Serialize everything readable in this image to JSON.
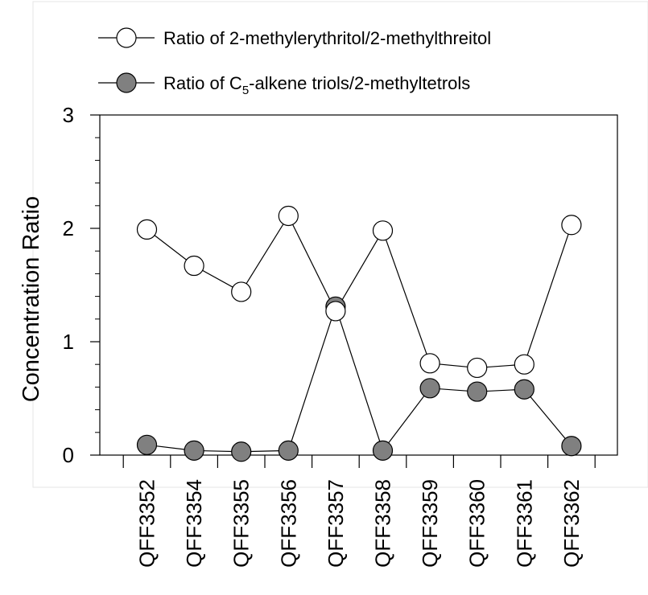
{
  "chart_data": {
    "type": "line",
    "categories": [
      "QFF3352",
      "QFF3354",
      "QFF3355",
      "QFF3356",
      "QFF3357",
      "QFF3358",
      "QFF3359",
      "QFF3360",
      "QFF3361",
      "QFF3362"
    ],
    "ylabel": "Concentration Ratio",
    "xlabel": "",
    "ylim": [
      0,
      3
    ],
    "yticks": [
      "0",
      "1",
      "2",
      "3"
    ],
    "grid": false,
    "legend_position": "top",
    "series": [
      {
        "name": "Ratio of 2-methylerythritol/2-methylthreitol",
        "legend_prefix": "Ratio of 2-methylerythritol/2-methylthreitol",
        "legend_sub": "",
        "legend_suffix": "",
        "marker_fill": "#ffffff",
        "values": [
          1.99,
          1.67,
          1.44,
          2.11,
          1.27,
          1.98,
          0.81,
          0.77,
          0.8,
          2.03
        ]
      },
      {
        "name": "Ratio of C5-alkene triols/2-methyltetrols",
        "legend_prefix": "Ratio of C",
        "legend_sub": "5",
        "legend_suffix": "-alkene triols/2-methyltetrols",
        "marker_fill": "#808080",
        "values": [
          0.09,
          0.04,
          0.03,
          0.04,
          1.31,
          0.04,
          0.59,
          0.56,
          0.58,
          0.08
        ]
      }
    ]
  }
}
